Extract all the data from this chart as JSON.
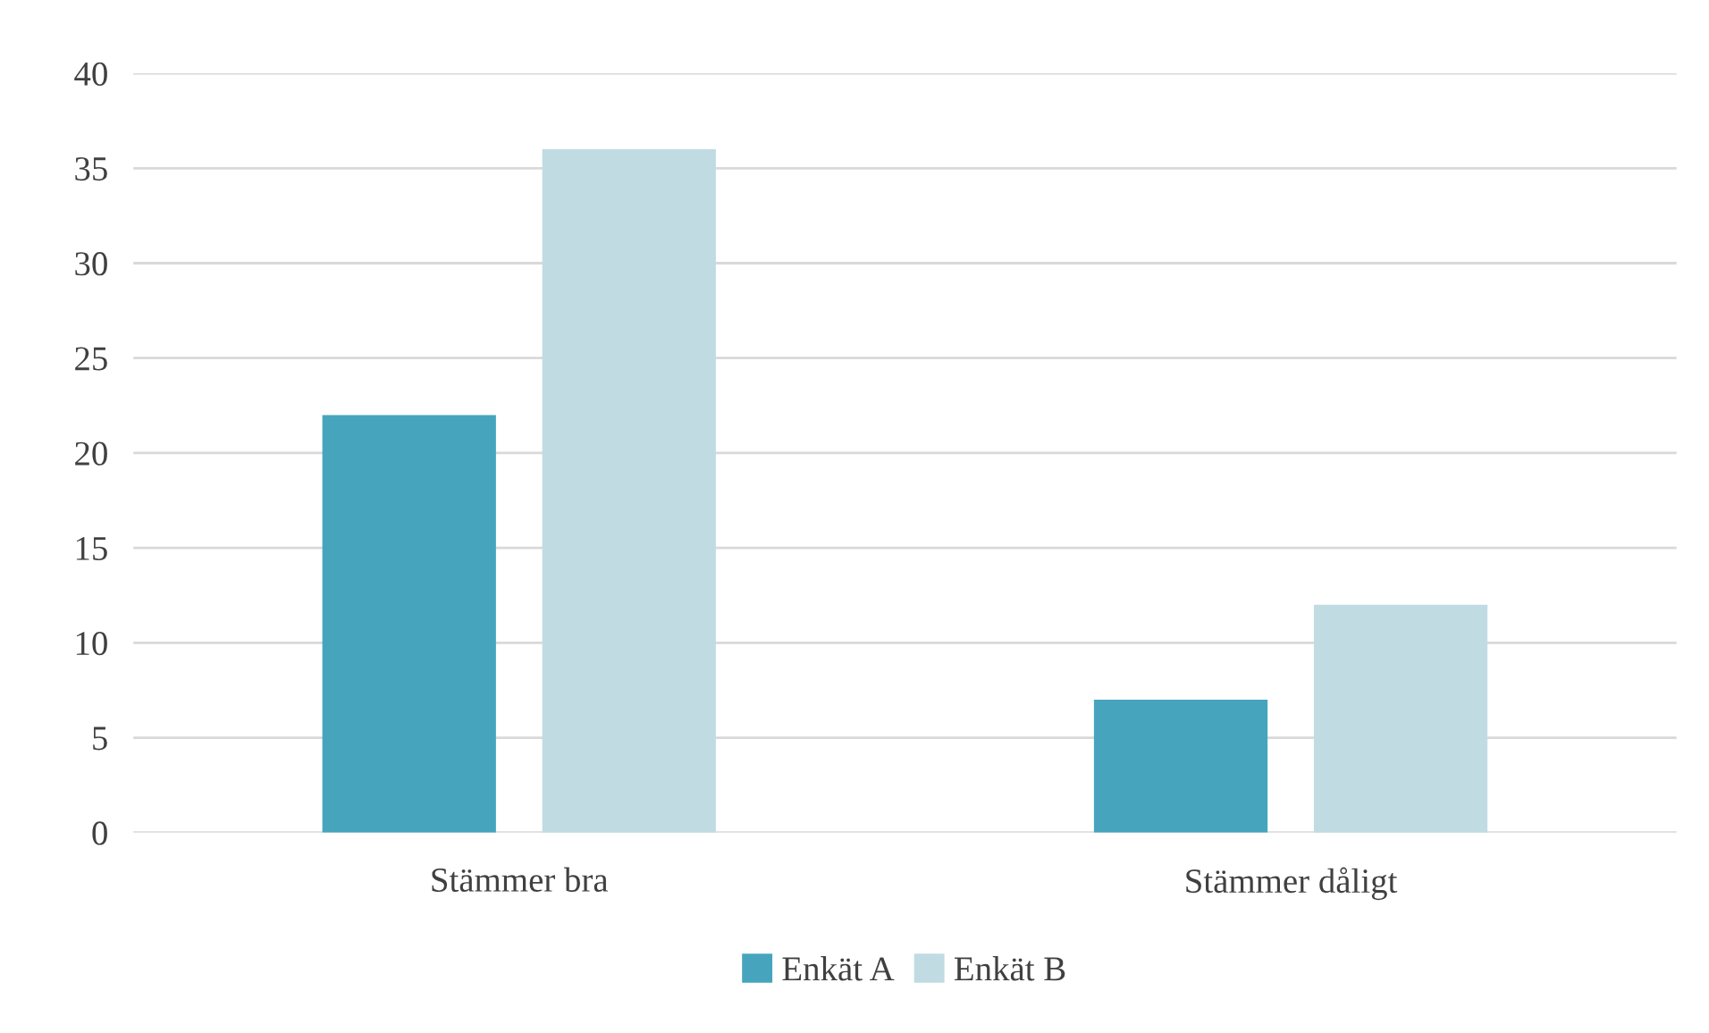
{
  "chart_data": {
    "type": "bar",
    "categories": [
      "Stämmer bra",
      "Stämmer dåligt"
    ],
    "series": [
      {
        "name": "Enkät A",
        "color": "#46a5bd",
        "values": [
          22,
          7
        ]
      },
      {
        "name": "Enkät B",
        "color": "#c1dbe3",
        "values": [
          36,
          12
        ]
      }
    ],
    "ylim": [
      0,
      40
    ],
    "yticks": [
      0,
      5,
      10,
      15,
      20,
      25,
      30,
      35,
      40
    ],
    "grid": "y",
    "legend": "bottom"
  }
}
